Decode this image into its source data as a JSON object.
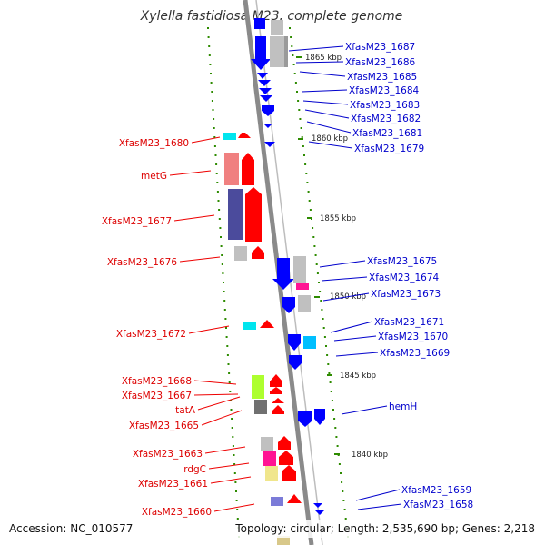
{
  "title": "Xylella fastidiosa M23, complete genome",
  "footer": {
    "accession": "Accession: NC_010577",
    "topology": "Topology: circular; Length: 2,535,690 bp; Genes: 2,218"
  },
  "colors": {
    "forward_label": "#dd0000",
    "reverse_label": "#0000cc",
    "forward_arrow": "#ff0000",
    "reverse_arrow": "#0000ff",
    "tick": "#2e8b00",
    "backbone": "#888888"
  },
  "scale_ticks": [
    {
      "label": "1865 kbp"
    },
    {
      "label": "1860 kbp"
    },
    {
      "label": "1855 kbp"
    },
    {
      "label": "1850 kbp"
    },
    {
      "label": "1845 kbp"
    },
    {
      "label": "1840 kbp"
    }
  ],
  "left_labels": [
    "XfasM23_1680",
    "metG",
    "XfasM23_1677",
    "XfasM23_1676",
    "XfasM23_1672",
    "XfasM23_1668",
    "XfasM23_1667",
    "tatA",
    "XfasM23_1665",
    "XfasM23_1663",
    "rdgC",
    "XfasM23_1661",
    "XfasM23_1660"
  ],
  "right_labels": [
    "XfasM23_1687",
    "XfasM23_1686",
    "XfasM23_1685",
    "XfasM23_1684",
    "XfasM23_1683",
    "XfasM23_1682",
    "XfasM23_1681",
    "XfasM23_1679",
    "XfasM23_1675",
    "XfasM23_1674",
    "XfasM23_1673",
    "XfasM23_1671",
    "XfasM23_1670",
    "XfasM23_1669",
    "hemH",
    "XfasM23_1659",
    "XfasM23_1658"
  ]
}
